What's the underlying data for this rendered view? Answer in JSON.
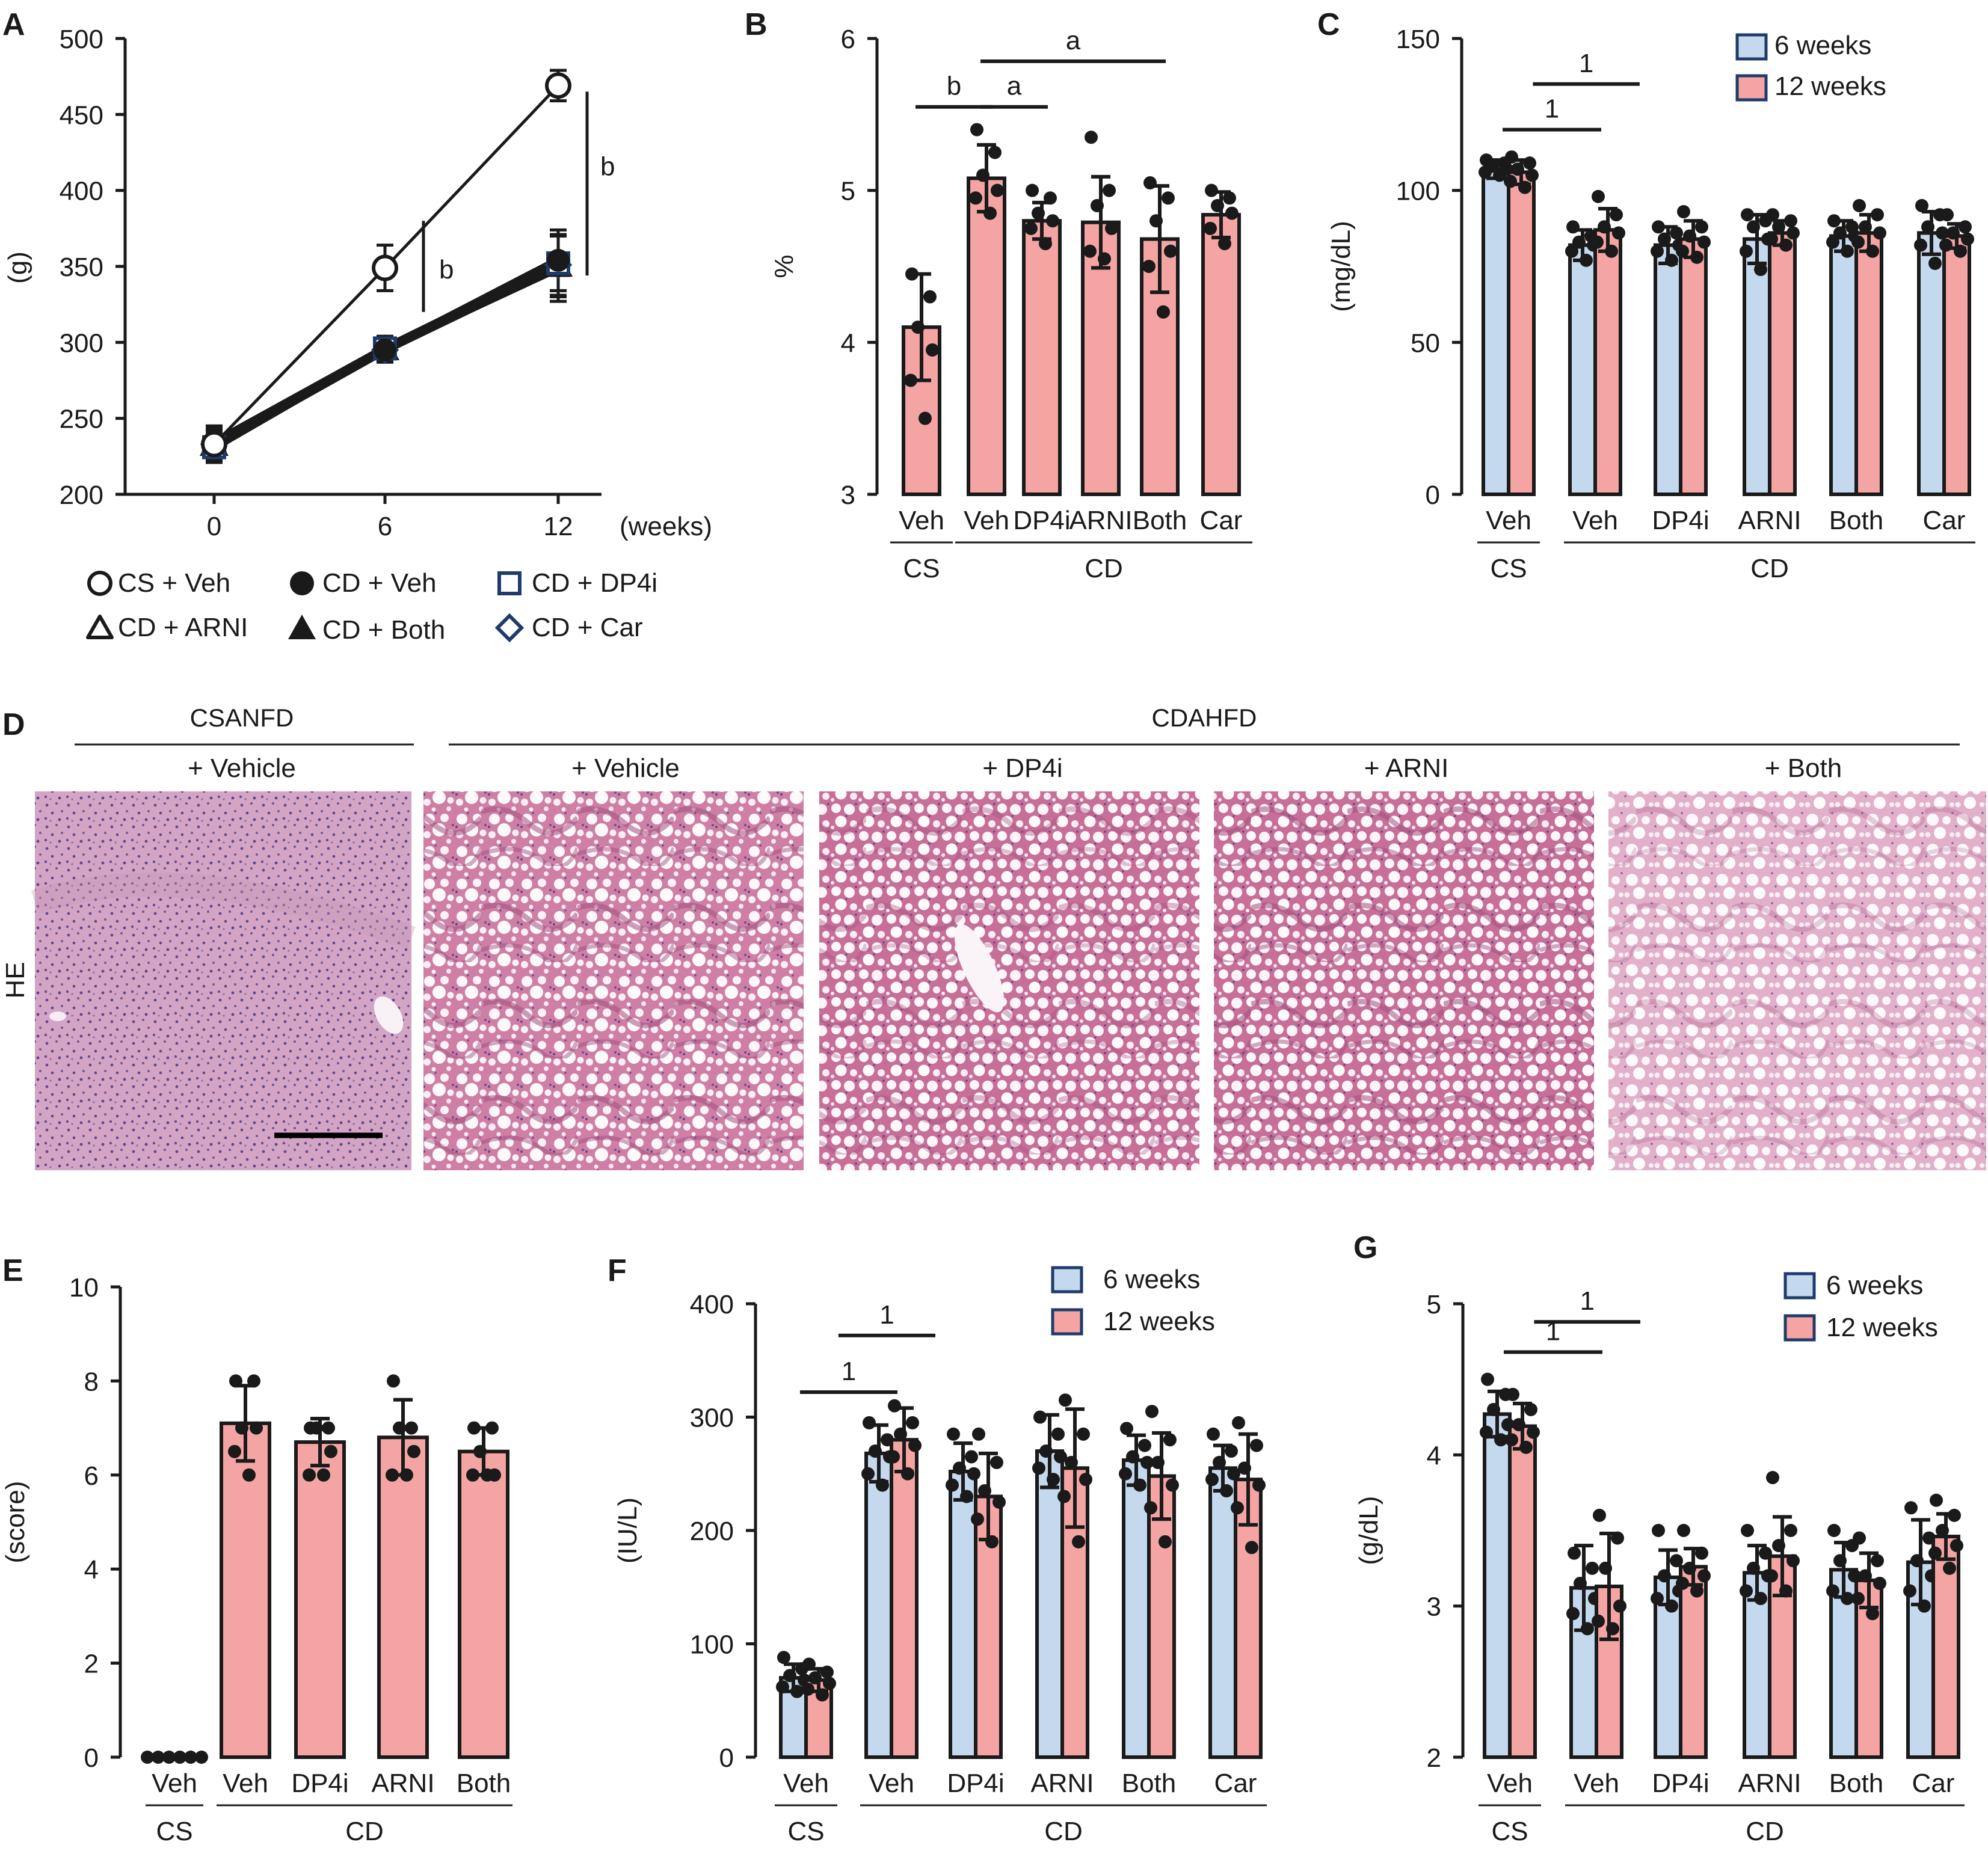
{
  "colors": {
    "blue": "#c5d9ee",
    "pink": "#f4a4a3",
    "ink": "#1a1a1a"
  },
  "legend_A": [
    "CS + Veh",
    "CD + Veh",
    "CD + DP4i",
    "CD + ARNI",
    "CD + Both",
    "CD + Car"
  ],
  "legend_weeks": [
    "6 weeks",
    "12 weeks"
  ],
  "panel_D": {
    "letter": "D",
    "group_cs": "CSANFD",
    "group_cd": "CDAHFD",
    "stain": "HE",
    "columns": [
      "+ Vehicle",
      "+ Vehicle",
      "+ DP4i",
      "+ ARNI",
      "+ Both"
    ]
  },
  "chart_data": [
    {
      "panel": "A",
      "type": "line",
      "x": [
        0,
        6,
        12
      ],
      "x_ticks": [
        "0",
        "6",
        "12"
      ],
      "xlabel": "(weeks)",
      "ylabel": "(g)",
      "ylim": [
        200,
        500
      ],
      "yticks": [
        200,
        250,
        300,
        350,
        400,
        450,
        500
      ],
      "series": [
        {
          "name": "CS + Veh",
          "marker": "open-circle",
          "values": [
            233,
            349,
            469
          ],
          "err": [
            12,
            15,
            10
          ]
        },
        {
          "name": "CD + Veh",
          "marker": "filled-circle",
          "values": [
            232,
            295,
            354
          ],
          "err": [
            10,
            8,
            20
          ]
        },
        {
          "name": "CD + DP4i",
          "marker": "open-square",
          "values": [
            231,
            296,
            352
          ],
          "err": [
            10,
            8,
            18
          ]
        },
        {
          "name": "CD + ARNI",
          "marker": "open-triangle",
          "values": [
            232,
            295,
            350
          ],
          "err": [
            10,
            8,
            20
          ]
        },
        {
          "name": "CD + Both",
          "marker": "filled-triangle",
          "values": [
            234,
            296,
            349
          ],
          "err": [
            10,
            8,
            22
          ]
        },
        {
          "name": "CD + Car",
          "marker": "open-diamond",
          "values": [
            233,
            295,
            351
          ],
          "err": [
            10,
            8,
            20
          ]
        }
      ],
      "annotations": [
        {
          "text": "b",
          "at_week": 6
        },
        {
          "text": "b",
          "at_week": 12
        }
      ]
    },
    {
      "panel": "B",
      "type": "bar",
      "categories": [
        "Veh",
        "Veh",
        "DP4i",
        "ARNI",
        "Both",
        "Car"
      ],
      "groups": [
        {
          "label": "CS",
          "from": 0,
          "to": 0
        },
        {
          "label": "CD",
          "from": 1,
          "to": 5
        }
      ],
      "ylabel": "%",
      "ylim": [
        3,
        6
      ],
      "yticks": [
        3,
        4,
        5,
        6
      ],
      "series": [
        {
          "color": "pink",
          "values": [
            4.1,
            5.08,
            4.8,
            4.79,
            4.68,
            4.84
          ],
          "err": [
            0.35,
            0.22,
            0.12,
            0.3,
            0.35,
            0.15
          ],
          "points": [
            [
              4.45,
              4.3,
              4.1,
              3.95,
              3.75,
              3.5
            ],
            [
              5.4,
              5.25,
              5.1,
              5.0,
              4.95,
              4.85
            ],
            [
              5.0,
              4.95,
              4.85,
              4.8,
              4.75,
              4.65
            ],
            [
              5.35,
              5.0,
              4.9,
              4.75,
              4.6,
              4.55
            ],
            [
              5.05,
              4.95,
              4.8,
              4.6,
              4.5,
              4.2
            ],
            [
              5.0,
              4.95,
              4.9,
              4.85,
              4.75,
              4.65
            ]
          ]
        }
      ],
      "significance": [
        {
          "label": "b",
          "from": 0,
          "to": 1,
          "y": 5.55
        },
        {
          "label": "a",
          "from": 1,
          "to": 2,
          "y": 5.55
        },
        {
          "label": "a",
          "from": 1,
          "to": 4,
          "y": 5.85
        }
      ]
    },
    {
      "panel": "C",
      "type": "bar",
      "categories": [
        "Veh",
        "Veh",
        "DP4i",
        "ARNI",
        "Both",
        "Car"
      ],
      "groups": [
        {
          "label": "CS",
          "from": 0,
          "to": 0
        },
        {
          "label": "CD",
          "from": 1,
          "to": 5
        }
      ],
      "ylabel": "(mg/dL)",
      "ylim": [
        0,
        150
      ],
      "yticks": [
        0,
        50,
        100,
        150
      ],
      "series": [
        {
          "name": "6 weeks",
          "color": "blue",
          "values": [
            107,
            82,
            82,
            84,
            85,
            86
          ],
          "err": [
            3,
            5,
            6,
            8,
            5,
            7
          ],
          "points": [
            [
              110,
              109,
              108,
              107,
              106,
              105
            ],
            [
              88,
              85,
              83,
              82,
              80,
              77
            ],
            [
              88,
              86,
              84,
              82,
              80,
              77
            ],
            [
              92,
              90,
              88,
              84,
              80,
              74
            ],
            [
              90,
              88,
              86,
              85,
              83,
              80
            ],
            [
              95,
              92,
              88,
              86,
              82,
              76
            ]
          ]
        },
        {
          "name": "12 weeks",
          "color": "pink",
          "values": [
            106,
            87,
            84,
            86,
            86,
            85
          ],
          "err": [
            4,
            7,
            6,
            4,
            6,
            4
          ],
          "points": [
            [
              111,
              109,
              107,
              105,
              103,
              101
            ],
            [
              98,
              92,
              88,
              86,
              83,
              80
            ],
            [
              93,
              88,
              85,
              83,
              80,
              78
            ],
            [
              92,
              90,
              88,
              86,
              84,
              82
            ],
            [
              95,
              92,
              88,
              86,
              83,
              80
            ],
            [
              92,
              88,
              86,
              84,
              82,
              80
            ]
          ]
        }
      ],
      "significance": [
        {
          "label": "1",
          "from": 0,
          "to": 1,
          "y": 120
        },
        {
          "label": "1",
          "from": 0.35,
          "to": 1.45,
          "y": 135
        }
      ]
    },
    {
      "panel": "E",
      "type": "bar",
      "categories": [
        "Veh",
        "Veh",
        "DP4i",
        "ARNI",
        "Both"
      ],
      "groups": [
        {
          "label": "CS",
          "from": 0,
          "to": 0
        },
        {
          "label": "CD",
          "from": 1,
          "to": 4
        }
      ],
      "ylabel": "(score)",
      "ylim": [
        0,
        10
      ],
      "yticks": [
        0,
        2,
        4,
        6,
        8,
        10
      ],
      "series": [
        {
          "color": "pink",
          "values": [
            0,
            7.1,
            6.7,
            6.8,
            6.5
          ],
          "err": [
            0,
            0.8,
            0.5,
            0.8,
            0.5
          ],
          "points": [
            [
              0,
              0,
              0,
              0,
              0,
              0
            ],
            [
              8,
              8,
              7,
              7,
              6.5,
              6
            ],
            [
              7,
              7,
              7,
              6.5,
              6,
              6
            ],
            [
              8,
              7,
              7,
              6.5,
              6,
              6
            ],
            [
              7,
              7,
              6.5,
              6,
              6,
              6
            ]
          ]
        }
      ]
    },
    {
      "panel": "F",
      "type": "bar",
      "categories": [
        "Veh",
        "Veh",
        "DP4i",
        "ARNI",
        "Both",
        "Car"
      ],
      "groups": [
        {
          "label": "CS",
          "from": 0,
          "to": 0
        },
        {
          "label": "CD",
          "from": 1,
          "to": 5
        }
      ],
      "ylabel": "(IU/L)",
      "ylim": [
        0,
        400
      ],
      "yticks": [
        0,
        100,
        200,
        300,
        400
      ],
      "series": [
        {
          "name": "6 weeks",
          "color": "blue",
          "values": [
            70,
            268,
            252,
            270,
            262,
            255
          ],
          "err": [
            12,
            25,
            25,
            32,
            22,
            20
          ],
          "points": [
            [
              88,
              78,
              72,
              68,
              62,
              58
            ],
            [
              295,
              280,
              270,
              265,
              250,
              240
            ],
            [
              285,
              265,
              255,
              250,
              240,
              230
            ],
            [
              300,
              285,
              270,
              265,
              255,
              245
            ],
            [
              290,
              275,
              265,
              260,
              250,
              240
            ],
            [
              285,
              270,
              260,
              250,
              245,
              235
            ]
          ]
        },
        {
          "name": "12 weeks",
          "color": "pink",
          "values": [
            68,
            280,
            230,
            255,
            248,
            245
          ],
          "err": [
            10,
            28,
            38,
            52,
            38,
            40
          ],
          "points": [
            [
              82,
              75,
              70,
              65,
              60,
              55
            ],
            [
              310,
              295,
              285,
              275,
              265,
              250
            ],
            [
              285,
              260,
              235,
              225,
              210,
              190
            ],
            [
              315,
              285,
              260,
              245,
              230,
              190
            ],
            [
              305,
              280,
              260,
              240,
              220,
              190
            ],
            [
              295,
              275,
              255,
              240,
              220,
              185
            ]
          ]
        }
      ],
      "significance": [
        {
          "label": "1",
          "from": 0,
          "to": 1,
          "y": 322
        },
        {
          "label": "1",
          "from": 0.45,
          "to": 1.45,
          "y": 372
        }
      ]
    },
    {
      "panel": "G",
      "type": "bar",
      "categories": [
        "Veh",
        "Veh",
        "DP4i",
        "ARNI",
        "Both",
        "Car"
      ],
      "groups": [
        {
          "label": "CS",
          "from": 0,
          "to": 0
        },
        {
          "label": "CD",
          "from": 1,
          "to": 5
        }
      ],
      "ylabel": "(g/dL)",
      "ylim": [
        2,
        5
      ],
      "yticks": [
        2,
        3,
        4,
        5
      ],
      "series": [
        {
          "name": "6 weeks",
          "color": "blue",
          "values": [
            4.27,
            3.12,
            3.19,
            3.22,
            3.24,
            3.29
          ],
          "err": [
            0.15,
            0.28,
            0.18,
            0.18,
            0.18,
            0.28
          ],
          "points": [
            [
              4.5,
              4.4,
              4.3,
              4.2,
              4.15,
              4.1
            ],
            [
              3.35,
              3.25,
              3.15,
              3.05,
              2.95,
              2.85
            ],
            [
              3.5,
              3.3,
              3.2,
              3.1,
              3.05,
              3.0
            ],
            [
              3.5,
              3.35,
              3.25,
              3.2,
              3.1,
              3.05
            ],
            [
              3.5,
              3.4,
              3.3,
              3.2,
              3.1,
              3.05
            ],
            [
              3.65,
              3.45,
              3.3,
              3.2,
              3.1,
              3.0
            ]
          ]
        },
        {
          "name": "12 weeks",
          "color": "pink",
          "values": [
            4.19,
            3.13,
            3.26,
            3.33,
            3.17,
            3.46
          ],
          "err": [
            0.15,
            0.35,
            0.12,
            0.26,
            0.18,
            0.15
          ],
          "points": [
            [
              4.4,
              4.3,
              4.2,
              4.15,
              4.1,
              4.05
            ],
            [
              3.6,
              3.45,
              3.25,
              3.0,
              2.9,
              2.85
            ],
            [
              3.5,
              3.35,
              3.25,
              3.2,
              3.15,
              3.1
            ],
            [
              3.85,
              3.5,
              3.4,
              3.3,
              3.2,
              3.1
            ],
            [
              3.45,
              3.3,
              3.2,
              3.15,
              3.05,
              2.95
            ],
            [
              3.7,
              3.6,
              3.5,
              3.4,
              3.35,
              3.25
            ]
          ]
        }
      ],
      "significance": [
        {
          "label": "1",
          "from": 0,
          "to": 1,
          "y": 4.68
        },
        {
          "label": "1",
          "from": 0.35,
          "to": 1.45,
          "y": 4.88
        }
      ]
    }
  ]
}
